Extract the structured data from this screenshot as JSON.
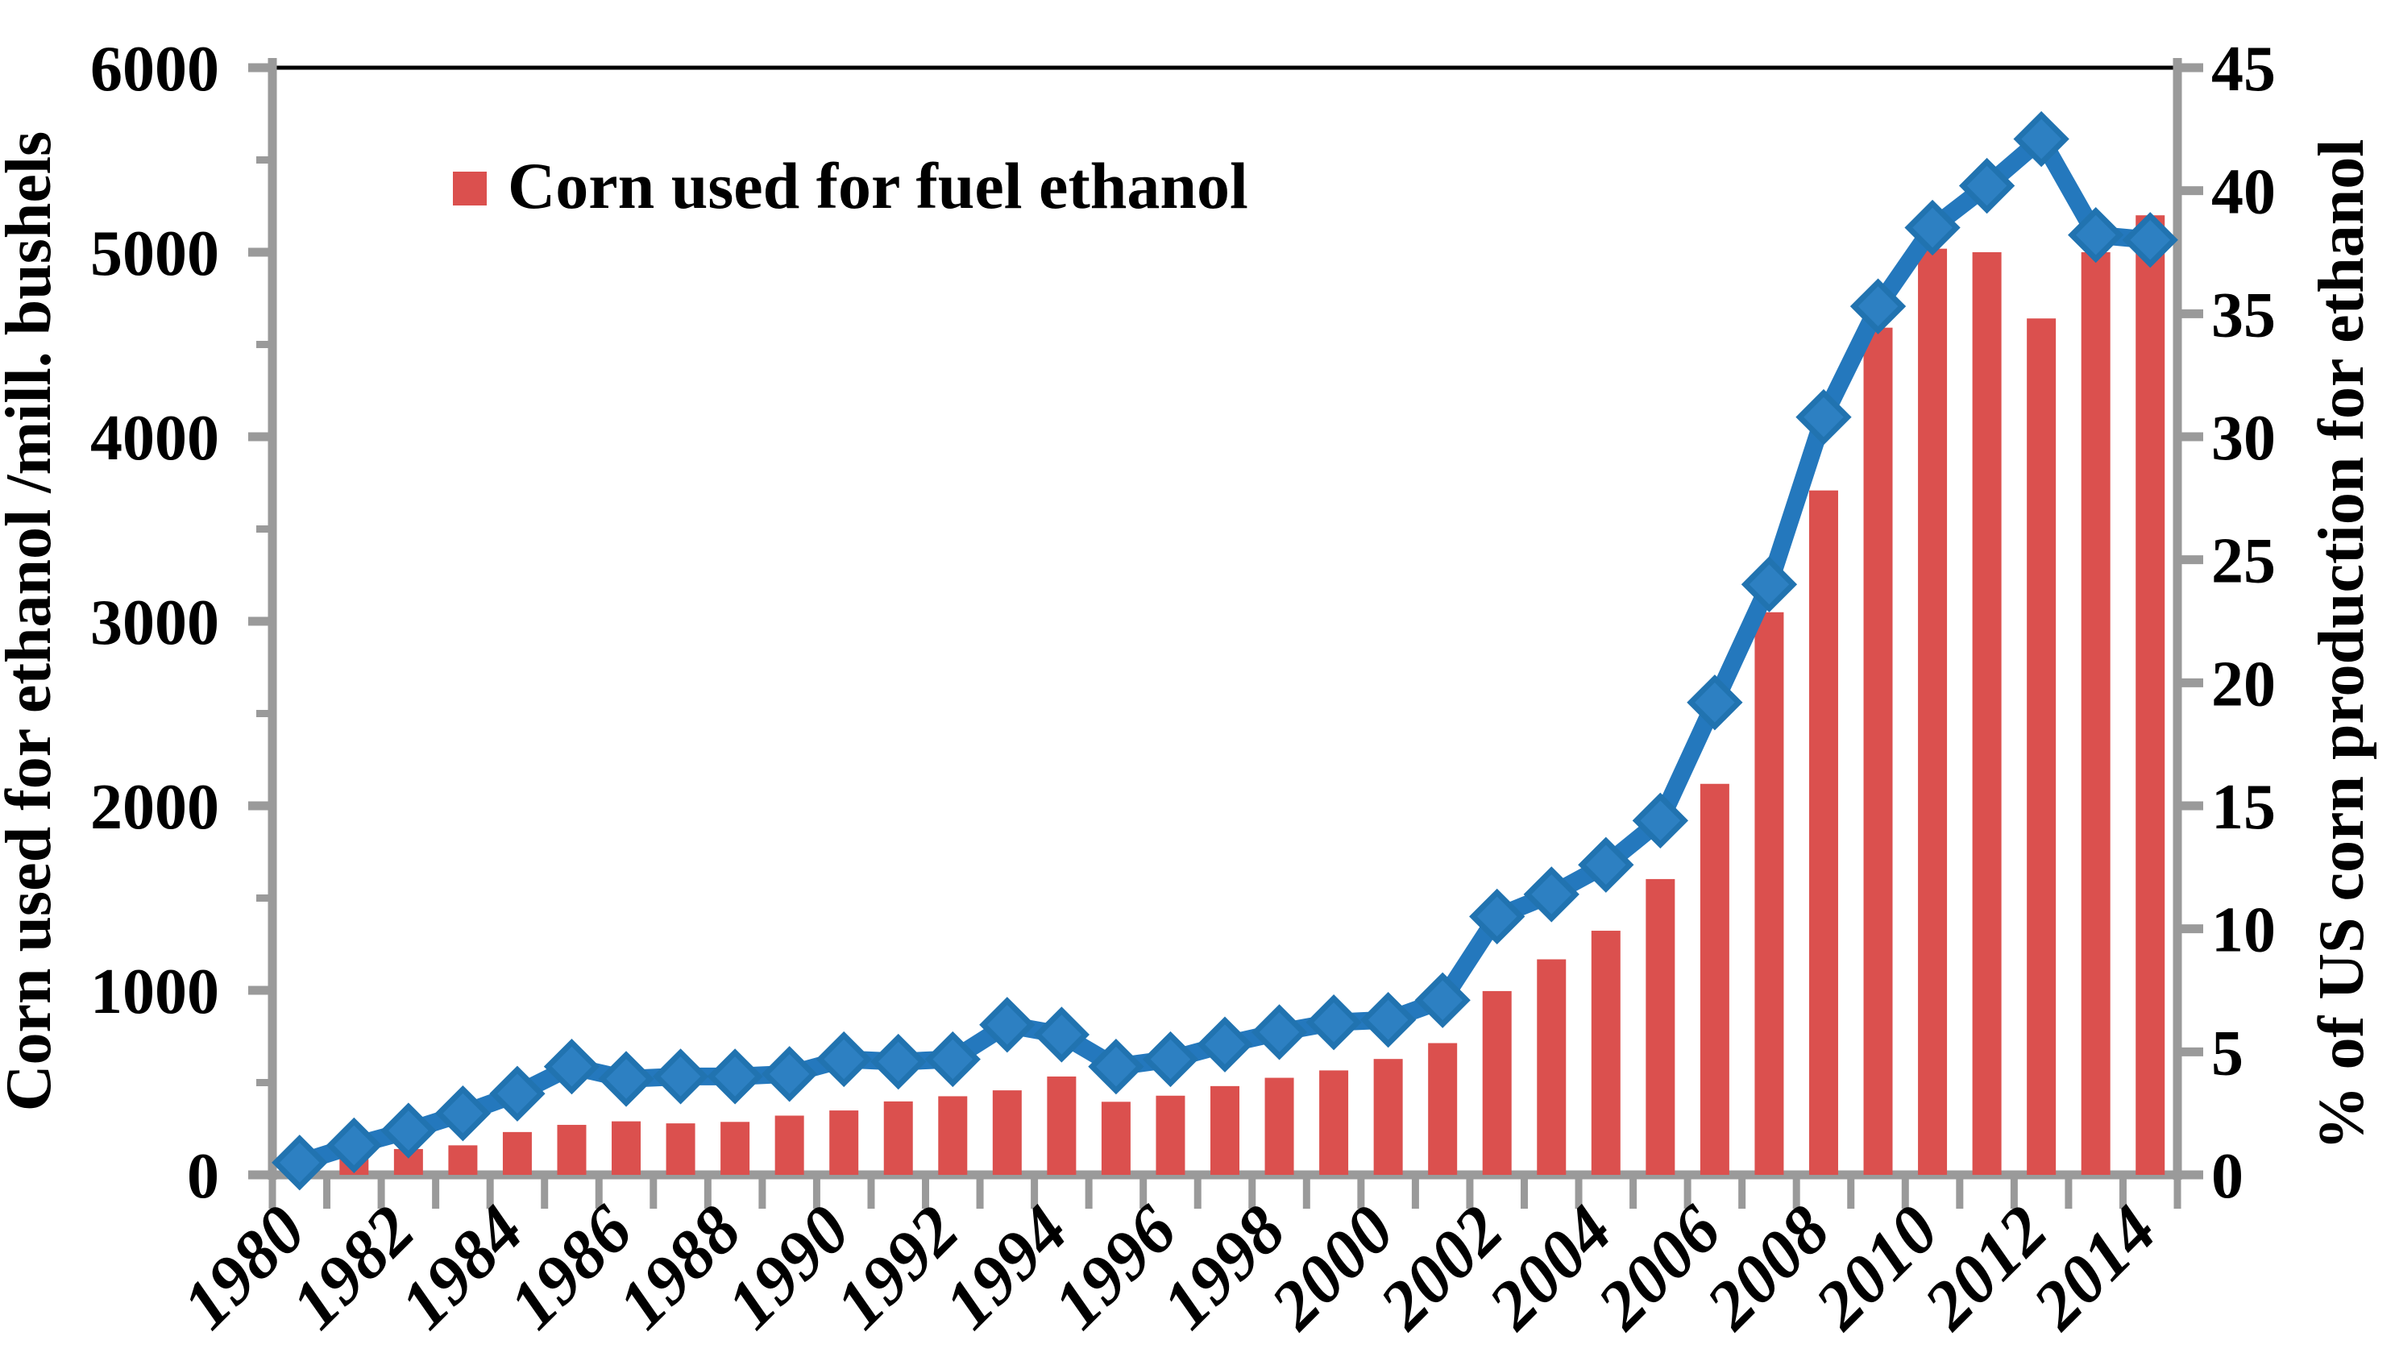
{
  "chart_data": {
    "type": "combo-bar-line",
    "title": "",
    "categories": [
      "1980",
      "1981",
      "1982",
      "1983",
      "1984",
      "1985",
      "1986",
      "1987",
      "1988",
      "1989",
      "1990",
      "1991",
      "1992",
      "1993",
      "1994",
      "1995",
      "1996",
      "1997",
      "1998",
      "1999",
      "2000",
      "2001",
      "2002",
      "2003",
      "2004",
      "2005",
      "2006",
      "2007",
      "2008",
      "2009",
      "2010",
      "2011",
      "2012",
      "2013",
      "2014"
    ],
    "series": [
      {
        "name": "Corn used for fuel ethanol",
        "type": "bar",
        "axis": "left",
        "color": "#DB504E",
        "values": [
          35,
          86,
          140,
          160,
          232,
          271,
          290,
          279,
          287,
          321,
          349,
          398,
          426,
          458,
          533,
          396,
          429,
          481,
          526,
          566,
          628,
          714,
          996,
          1168,
          1323,
          1603,
          2119,
          3049,
          3709,
          4591,
          5019,
          5000,
          4641,
          5000,
          5200
        ]
      },
      {
        "name": "% of US corn production for ethanol",
        "type": "line",
        "axis": "right",
        "color": "#2478BD",
        "marker": "diamond",
        "values": [
          0.5,
          1.2,
          1.8,
          2.5,
          3.3,
          4.4,
          3.9,
          4.0,
          4.0,
          4.1,
          4.7,
          4.6,
          4.7,
          6.1,
          5.7,
          4.4,
          4.7,
          5.3,
          5.8,
          6.2,
          6.3,
          7.1,
          10.5,
          11.4,
          12.6,
          14.4,
          19.2,
          24.0,
          30.8,
          35.3,
          38.5,
          40.2,
          42.1,
          38.2,
          38.0
        ]
      }
    ],
    "left_axis": {
      "title": "Corn used for ethanol /mill. bushels",
      "min": 0,
      "max": 6000,
      "major_step": 1000,
      "minor_step": 500,
      "tick_labels": [
        "0",
        "1000",
        "2000",
        "3000",
        "4000",
        "5000",
        "6000"
      ]
    },
    "right_axis": {
      "title": "% of US corn production for ethanol",
      "min": 0,
      "max": 45,
      "major_step": 5,
      "tick_labels": [
        "0",
        "5",
        "10",
        "15",
        "20",
        "25",
        "30",
        "35",
        "40",
        "45"
      ]
    },
    "x_axis": {
      "tick_labels": [
        "1980",
        "1982",
        "1984",
        "1986",
        "1988",
        "1990",
        "1992",
        "1994",
        "1996",
        "1998",
        "2000",
        "2002",
        "2004",
        "2006",
        "2008",
        "2010",
        "2012",
        "2014"
      ]
    },
    "legend": {
      "label": "Corn used for fuel ethanol",
      "swatch_color": "#DB504E",
      "position": "top-left-inside"
    },
    "style_colors": {
      "axis_gray": "#9A9A9A",
      "frame_top": "#000000",
      "text": "#000000"
    },
    "grid": "off"
  }
}
